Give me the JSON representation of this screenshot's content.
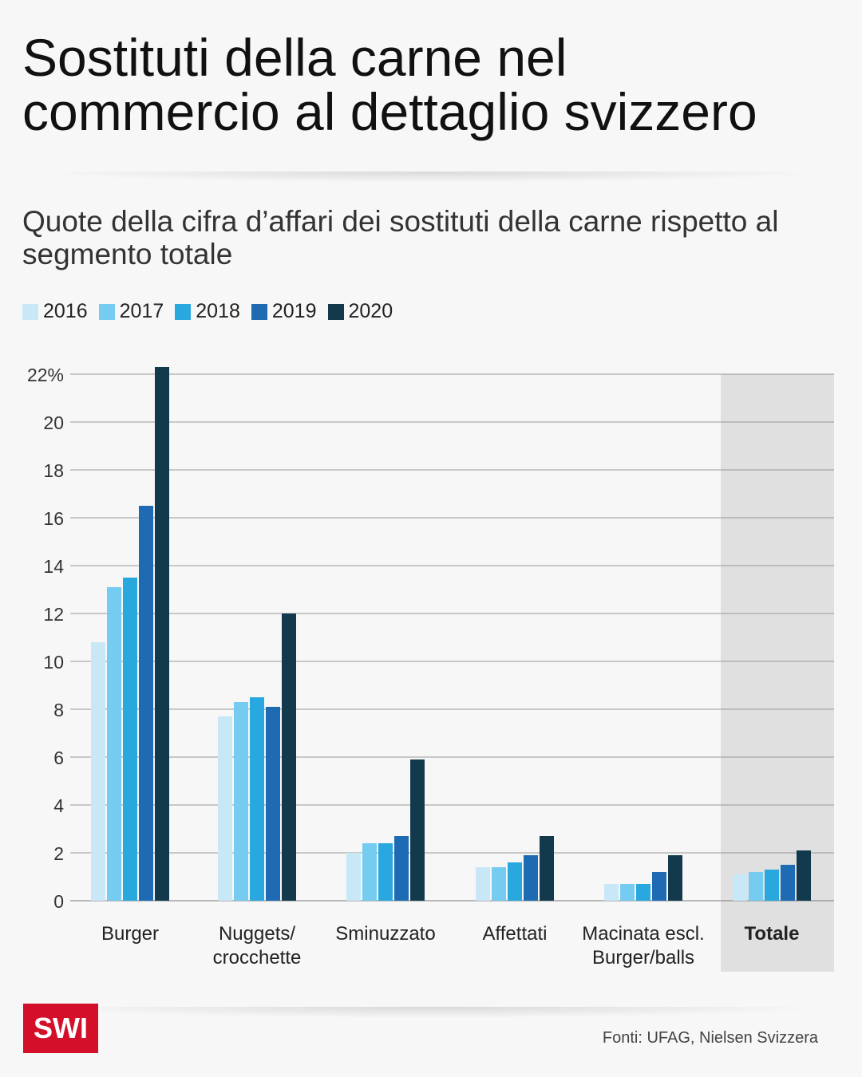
{
  "title": "Sostituti della carne nel commercio al dettaglio svizzero",
  "subtitle": "Quote della cifra d’affari dei sostituti della carne rispetto al segmento totale",
  "source": "Fonti: UFAG, Nielsen Svizzera",
  "logo": "SWI",
  "chart_data": {
    "type": "bar",
    "categories": [
      "Burger",
      "Nuggets/\ncrocchette",
      "Sminuzzato",
      "Affettati",
      "Macinata escl.\nBurger/balls",
      "Totale"
    ],
    "highlight_category": "Totale",
    "ylim": [
      0,
      22
    ],
    "yticks": [
      0,
      2,
      4,
      6,
      8,
      10,
      12,
      14,
      16,
      18,
      20,
      22
    ],
    "ytick_labels": [
      "0",
      "2",
      "4",
      "6",
      "8",
      "10",
      "12",
      "14",
      "16",
      "18",
      "20",
      "22%"
    ],
    "grid": true,
    "legend_position": "top-left",
    "series": [
      {
        "name": "2016",
        "color": "#c8e8f8",
        "values": [
          10.8,
          7.7,
          2.0,
          1.4,
          0.7,
          1.1
        ]
      },
      {
        "name": "2017",
        "color": "#76ccf0",
        "values": [
          13.1,
          8.3,
          2.4,
          1.4,
          0.7,
          1.2
        ]
      },
      {
        "name": "2018",
        "color": "#29a8e0",
        "values": [
          13.5,
          8.5,
          2.4,
          1.6,
          0.7,
          1.3
        ]
      },
      {
        "name": "2019",
        "color": "#1e6bb4",
        "values": [
          16.5,
          8.1,
          2.7,
          1.9,
          1.2,
          1.5
        ]
      },
      {
        "name": "2020",
        "color": "#133a4c",
        "values": [
          22.3,
          12.0,
          5.9,
          2.7,
          1.9,
          2.1
        ]
      }
    ]
  }
}
